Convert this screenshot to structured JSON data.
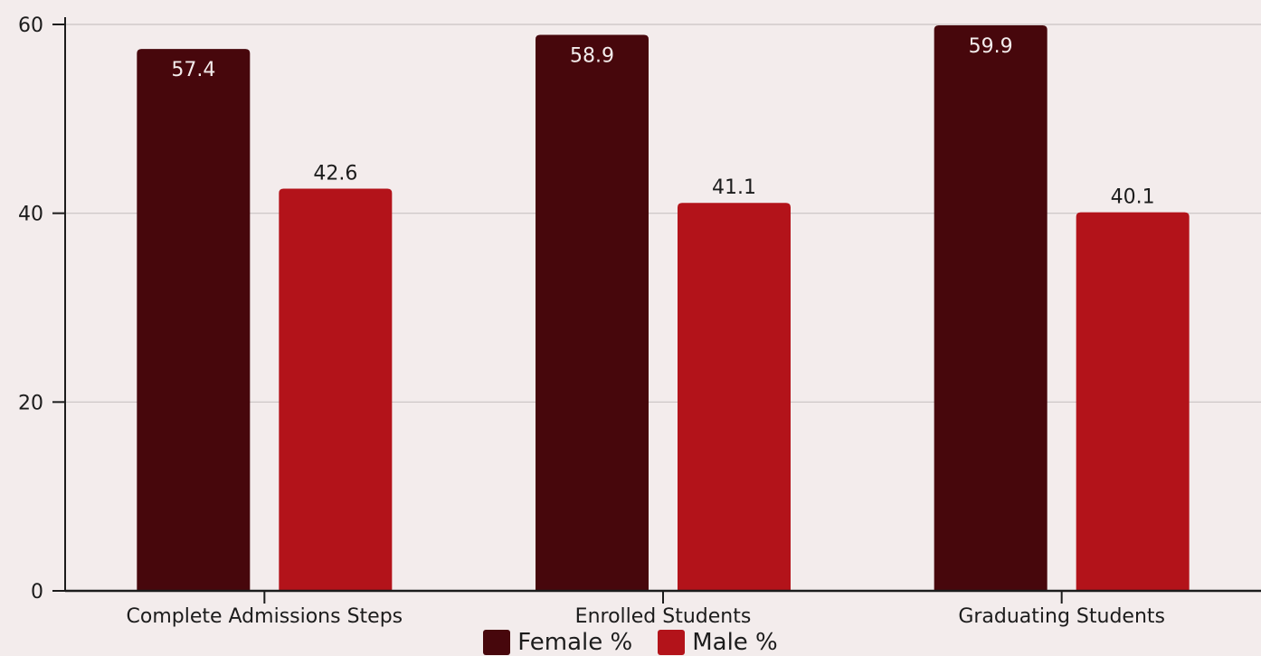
{
  "chart_data": {
    "type": "bar",
    "categories": [
      "Complete Admissions Steps",
      "Enrolled Students",
      "Graduating Students"
    ],
    "series": [
      {
        "name": "Female %",
        "values": [
          57.4,
          58.9,
          59.9
        ],
        "color": "#47070c"
      },
      {
        "name": "Male %",
        "values": [
          42.6,
          41.1,
          40.1
        ],
        "color": "#b3131a"
      }
    ],
    "ylim": [
      0,
      60
    ],
    "yticks": [
      0,
      20,
      40,
      60
    ],
    "grid": true,
    "legend_position": "bottom",
    "data_label_colors": {
      "inside": "#f3ecec",
      "above": "#1c1c1c"
    }
  }
}
